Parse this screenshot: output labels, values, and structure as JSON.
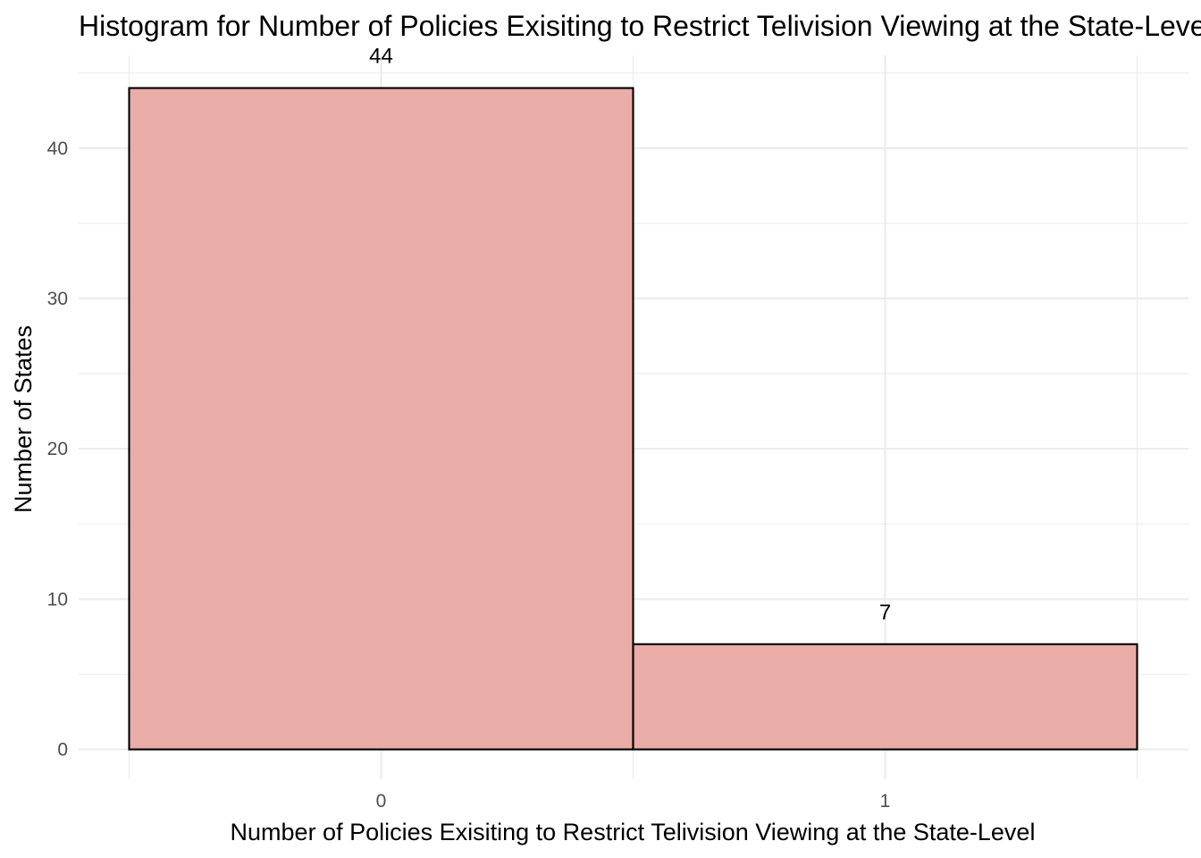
{
  "chart_data": {
    "type": "bar",
    "title": "Histogram for Number of Policies Exisiting to Restrict Telivision Viewing at the State-Level",
    "xlabel": "Number of Policies Exisiting to Restrict Telivision Viewing at the State-Level",
    "ylabel": "Number of States",
    "categories": [
      "0",
      "1"
    ],
    "x": [
      0,
      1
    ],
    "values": [
      44,
      7
    ],
    "data_labels": [
      "44",
      "7"
    ],
    "bin_width": 1,
    "xlim": [
      -0.5,
      1.5
    ],
    "ylim": [
      0,
      44
    ],
    "y_ticks": [
      0,
      10,
      20,
      30,
      40
    ],
    "x_ticks": [
      0,
      1
    ],
    "grid": true,
    "legend": "none",
    "bar_fill": "#eaaca7",
    "bar_outline": "#000000"
  }
}
